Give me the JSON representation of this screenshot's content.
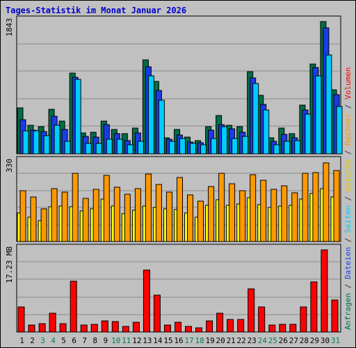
{
  "chart_data": {
    "type": "bar",
    "title": "Tages-Statistik im Monat Januar 2026",
    "categories": [
      "1",
      "2",
      "3",
      "4",
      "5",
      "6",
      "7",
      "8",
      "9",
      "10",
      "11",
      "12",
      "13",
      "14",
      "15",
      "16",
      "17",
      "18",
      "19",
      "20",
      "21",
      "22",
      "23",
      "24",
      "25",
      "26",
      "27",
      "28",
      "29",
      "30",
      "31"
    ],
    "weekend_days": [
      "3",
      "4",
      "10",
      "11",
      "17",
      "18",
      "24",
      "25",
      "31"
    ],
    "panels": [
      {
        "id": "requests",
        "max_label": "1843",
        "ylim": [
          0,
          1843
        ],
        "series": [
          {
            "name": "Anfragen",
            "color": "#006e46",
            "values": [
              643,
              394,
              376,
              617,
              453,
              1128,
              288,
              298,
              452,
              336,
              277,
              358,
              1314,
              1006,
              223,
              340,
              234,
              181,
              382,
              537,
              399,
              378,
              1149,
              811,
              223,
              355,
              284,
              679,
              1248,
              1843,
              891
            ]
          },
          {
            "name": "Dateien",
            "color": "#1a3ce6",
            "values": [
              478,
              332,
              306,
              522,
              336,
              1069,
              244,
              229,
              406,
              285,
              181,
              291,
              1209,
              885,
              201,
              265,
              168,
              153,
              328,
              406,
              350,
              301,
              1060,
              685,
              176,
              268,
              227,
              612,
              1200,
              1752,
              829
            ]
          },
          {
            "name": "Seiten",
            "color": "#00ccff",
            "values": [
              322,
              322,
              252,
              399,
              171,
              1039,
              144,
              146,
              208,
              204,
              123,
              174,
              1085,
              743,
              170,
              212,
              146,
              127,
              214,
              375,
              217,
              244,
              980,
              615,
              129,
              172,
              184,
              551,
              1091,
              1379,
              655
            ]
          }
        ]
      },
      {
        "id": "visits",
        "max_label": "330",
        "ylim": [
          0,
          330
        ],
        "series": [
          {
            "name": "Besuche",
            "color": "#ffff00",
            "values": [
              120,
              100,
              86,
              145,
              148,
              144,
              128,
              135,
              176,
              149,
              116,
              131,
              148,
              141,
              136,
              133,
              118,
              101,
              150,
              173,
              150,
              156,
              181,
              153,
              141,
              147,
              151,
              176,
              200,
              219,
              186
            ]
          },
          {
            "name": "Rechner",
            "color": "#ff9900",
            "values": [
              210,
              184,
              135,
              221,
              206,
              285,
              179,
              218,
              275,
              227,
              196,
              221,
              282,
              237,
              205,
              266,
              194,
              168,
              229,
              285,
              241,
              212,
              279,
              254,
              218,
              232,
              204,
              285,
              286,
              328,
              296
            ]
          }
        ]
      },
      {
        "id": "volume",
        "max_label": "17.23 MB",
        "ylim": [
          0,
          17.23
        ],
        "series": [
          {
            "name": "Volumen",
            "color": "#ff0000",
            "values": [
              5.3,
              1.4,
              1.8,
              3.9,
              1.7,
              10.6,
              1.5,
              1.6,
              2.4,
              2.2,
              1.2,
              2.0,
              13.0,
              7.8,
              1.4,
              2.1,
              1.1,
              0.9,
              2.4,
              4.0,
              2.6,
              2.7,
              9.1,
              5.3,
              1.4,
              1.6,
              1.6,
              5.3,
              10.5,
              17.23,
              6.7
            ]
          }
        ]
      }
    ],
    "side_labels": [
      {
        "text": "Anfragen",
        "color": "#006e46"
      },
      {
        "text": " / ",
        "color": "#333333"
      },
      {
        "text": "Dateien",
        "color": "#1a3ce6"
      },
      {
        "text": " / ",
        "color": "#333333"
      },
      {
        "text": "Seiten",
        "color": "#00ccff"
      },
      {
        "text": " / ",
        "color": "#333333"
      },
      {
        "text": "Besuche",
        "color": "#e6c800"
      },
      {
        "text": " / ",
        "color": "#333333"
      },
      {
        "text": "Rechner",
        "color": "#ff9900"
      },
      {
        "text": " / ",
        "color": "#333333"
      },
      {
        "text": "Volumen",
        "color": "#ff0000"
      }
    ],
    "colors": {
      "weekday_label": "#000000",
      "weekend_label": "#00805a",
      "panel_bg": "#c0c0c0",
      "grid": "#8a8a8a"
    },
    "grid": true
  }
}
